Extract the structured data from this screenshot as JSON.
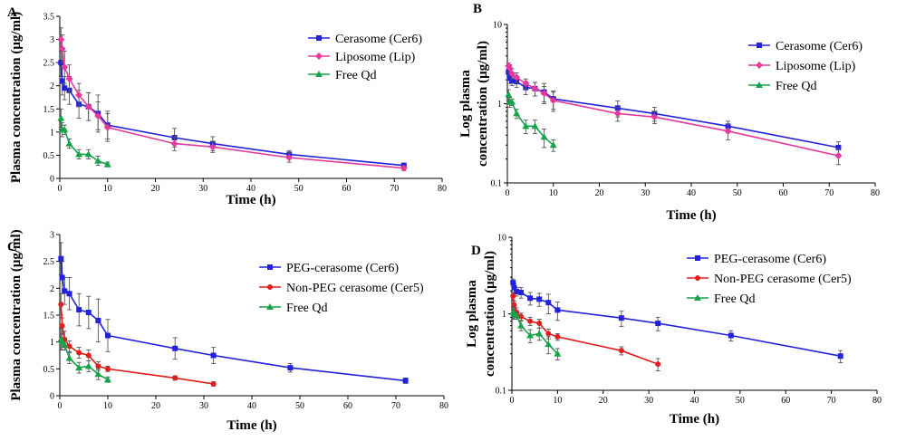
{
  "colors": {
    "blue": "#2222dd",
    "pink": "#e6399b",
    "green": "#16a34a",
    "red": "#e11d1d",
    "error_bar": "#555555"
  },
  "chart_data": [
    {
      "panel": "A",
      "type": "line",
      "scale": "linear",
      "xlabel": "Time (h)",
      "ylabel": "Plasma concentration (μg/ml)",
      "xlim": [
        0,
        80
      ],
      "ylim": [
        0,
        3.5
      ],
      "xticks": [
        "0",
        "10",
        "20",
        "30",
        "40",
        "50",
        "60",
        "70",
        "80"
      ],
      "yticks": [
        "0",
        "0.5",
        "1",
        "1.5",
        "2",
        "2.5",
        "3",
        "3.5"
      ],
      "legend_position": "top-right",
      "series": [
        {
          "name": "Cerasome (Cer6)",
          "color": "blue",
          "marker": "square",
          "x": [
            0.25,
            0.5,
            1,
            2,
            4,
            6,
            8,
            10,
            24,
            32,
            48,
            72
          ],
          "y": [
            2.5,
            2.1,
            1.95,
            1.9,
            1.6,
            1.55,
            1.4,
            1.15,
            0.88,
            0.75,
            0.52,
            0.28
          ],
          "err": [
            0.3,
            0.3,
            0.25,
            0.3,
            0.3,
            0.3,
            0.4,
            0.3,
            0.2,
            0.15,
            0.08,
            0.05
          ]
        },
        {
          "name": "Liposome (Lip)",
          "color": "pink",
          "marker": "diamond",
          "x": [
            0.25,
            0.5,
            1,
            2,
            4,
            6,
            8,
            10,
            24,
            32,
            48,
            72
          ],
          "y": [
            3.0,
            2.8,
            2.4,
            2.15,
            1.8,
            1.55,
            1.35,
            1.1,
            0.75,
            0.68,
            0.45,
            0.22
          ],
          "err": [
            0.25,
            0.3,
            0.35,
            0.3,
            0.25,
            0.3,
            0.3,
            0.3,
            0.15,
            0.12,
            0.1,
            0.05
          ]
        },
        {
          "name": "Free Qd",
          "color": "green",
          "marker": "triangle",
          "x": [
            0.25,
            0.5,
            1,
            2,
            4,
            6,
            8,
            10
          ],
          "y": [
            1.3,
            1.05,
            1.05,
            0.75,
            0.52,
            0.52,
            0.38,
            0.3
          ],
          "err": [
            0.2,
            0.15,
            0.1,
            0.1,
            0.1,
            0.1,
            0.1,
            0.05
          ]
        }
      ]
    },
    {
      "panel": "B",
      "type": "line",
      "scale": "log",
      "xlabel": "Time (h)",
      "ylabel": "Log plasma concentration (μg/ml)",
      "xlim": [
        0,
        80
      ],
      "ylim": [
        0.1,
        10
      ],
      "xticks": [
        "0",
        "10",
        "20",
        "30",
        "40",
        "50",
        "60",
        "70",
        "80"
      ],
      "yticks": [
        "0.1",
        "1",
        "10"
      ],
      "legend_position": "top-right",
      "series": [
        {
          "name": "Cerasome (Cer6)",
          "color": "blue",
          "marker": "square",
          "x": [
            0.25,
            0.5,
            1,
            2,
            4,
            6,
            8,
            10,
            24,
            32,
            48,
            72
          ],
          "y": [
            2.5,
            2.1,
            1.95,
            1.9,
            1.6,
            1.55,
            1.4,
            1.15,
            0.88,
            0.75,
            0.52,
            0.28
          ],
          "err": [
            0.3,
            0.3,
            0.25,
            0.3,
            0.3,
            0.3,
            0.4,
            0.3,
            0.2,
            0.15,
            0.08,
            0.05
          ]
        },
        {
          "name": "Liposome (Lip)",
          "color": "pink",
          "marker": "diamond",
          "x": [
            0.25,
            0.5,
            1,
            2,
            4,
            6,
            8,
            10,
            24,
            32,
            48,
            72
          ],
          "y": [
            3.0,
            2.8,
            2.4,
            2.15,
            1.8,
            1.55,
            1.35,
            1.1,
            0.75,
            0.68,
            0.45,
            0.22
          ],
          "err": [
            0.25,
            0.3,
            0.35,
            0.3,
            0.25,
            0.3,
            0.3,
            0.3,
            0.15,
            0.12,
            0.1,
            0.05
          ]
        },
        {
          "name": "Free Qd",
          "color": "green",
          "marker": "triangle",
          "x": [
            0.25,
            0.5,
            1,
            2,
            4,
            6,
            8,
            10
          ],
          "y": [
            1.3,
            1.05,
            1.05,
            0.75,
            0.52,
            0.52,
            0.38,
            0.3
          ],
          "err": [
            0.2,
            0.15,
            0.1,
            0.1,
            0.1,
            0.1,
            0.1,
            0.05
          ]
        }
      ]
    },
    {
      "panel": "C",
      "type": "line",
      "scale": "linear",
      "xlabel": "Time (h)",
      "ylabel": "Plasma concentration (μg/ml)",
      "xlim": [
        0,
        80
      ],
      "ylim": [
        0,
        3
      ],
      "xticks": [
        "0",
        "10",
        "20",
        "30",
        "40",
        "50",
        "60",
        "70",
        "80"
      ],
      "yticks": [
        "0",
        "0.5",
        "1",
        "1.5",
        "2",
        "2.5",
        "3"
      ],
      "legend_position": "top-right",
      "series": [
        {
          "name": "PEG-cerasome (Cer6)",
          "color": "blue",
          "marker": "square",
          "x": [
            0.25,
            0.5,
            1,
            2,
            4,
            6,
            8,
            10,
            24,
            32,
            48,
            72
          ],
          "y": [
            2.55,
            2.2,
            1.95,
            1.9,
            1.6,
            1.55,
            1.4,
            1.12,
            0.88,
            0.75,
            0.52,
            0.28
          ],
          "err": [
            0.3,
            0.3,
            0.25,
            0.3,
            0.3,
            0.3,
            0.4,
            0.3,
            0.2,
            0.15,
            0.08,
            0.05
          ]
        },
        {
          "name": "Non-PEG cerasome (Cer5)",
          "color": "red",
          "marker": "circle",
          "x": [
            0.25,
            0.5,
            1,
            2,
            4,
            6,
            8,
            10,
            24,
            32
          ],
          "y": [
            1.7,
            1.3,
            1.05,
            0.92,
            0.8,
            0.75,
            0.55,
            0.5,
            0.33,
            0.22
          ],
          "err": [
            0.2,
            0.15,
            0.15,
            0.1,
            0.1,
            0.1,
            0.08,
            0.05,
            0.04,
            0.04
          ]
        },
        {
          "name": "Free Qd",
          "color": "green",
          "marker": "triangle",
          "x": [
            0.25,
            0.5,
            1,
            2,
            4,
            6,
            8,
            10
          ],
          "y": [
            1.05,
            1.0,
            0.95,
            0.7,
            0.52,
            0.55,
            0.4,
            0.3
          ],
          "err": [
            0.2,
            0.15,
            0.1,
            0.1,
            0.1,
            0.1,
            0.1,
            0.05
          ]
        }
      ]
    },
    {
      "panel": "D",
      "type": "line",
      "scale": "log",
      "xlabel": "Time (h)",
      "ylabel": "Log plasma concentration (μg/ml)",
      "xlim": [
        0,
        80
      ],
      "ylim": [
        0.1,
        10
      ],
      "xticks": [
        "0",
        "10",
        "20",
        "30",
        "40",
        "50",
        "60",
        "70",
        "80"
      ],
      "yticks": [
        "0.1",
        "1",
        "10"
      ],
      "legend_position": "top-right",
      "series": [
        {
          "name": "PEG-cerasome (Cer6)",
          "color": "blue",
          "marker": "square",
          "x": [
            0.25,
            0.5,
            1,
            2,
            4,
            6,
            8,
            10,
            24,
            32,
            48,
            72
          ],
          "y": [
            2.55,
            2.2,
            1.95,
            1.9,
            1.6,
            1.55,
            1.4,
            1.12,
            0.88,
            0.75,
            0.52,
            0.28
          ],
          "err": [
            0.3,
            0.3,
            0.25,
            0.3,
            0.3,
            0.3,
            0.4,
            0.3,
            0.2,
            0.15,
            0.08,
            0.05
          ]
        },
        {
          "name": "Non-PEG cerasome (Cer5)",
          "color": "red",
          "marker": "circle",
          "x": [
            0.25,
            0.5,
            1,
            2,
            4,
            6,
            8,
            10,
            24,
            32
          ],
          "y": [
            1.7,
            1.3,
            1.05,
            0.92,
            0.8,
            0.75,
            0.55,
            0.5,
            0.33,
            0.22
          ],
          "err": [
            0.2,
            0.15,
            0.15,
            0.1,
            0.1,
            0.1,
            0.08,
            0.05,
            0.04,
            0.04
          ]
        },
        {
          "name": "Free Qd",
          "color": "green",
          "marker": "triangle",
          "x": [
            0.25,
            0.5,
            1,
            2,
            4,
            6,
            8,
            10
          ],
          "y": [
            1.05,
            1.0,
            0.95,
            0.7,
            0.52,
            0.55,
            0.4,
            0.3
          ],
          "err": [
            0.2,
            0.15,
            0.1,
            0.1,
            0.1,
            0.1,
            0.1,
            0.05
          ]
        }
      ]
    }
  ]
}
